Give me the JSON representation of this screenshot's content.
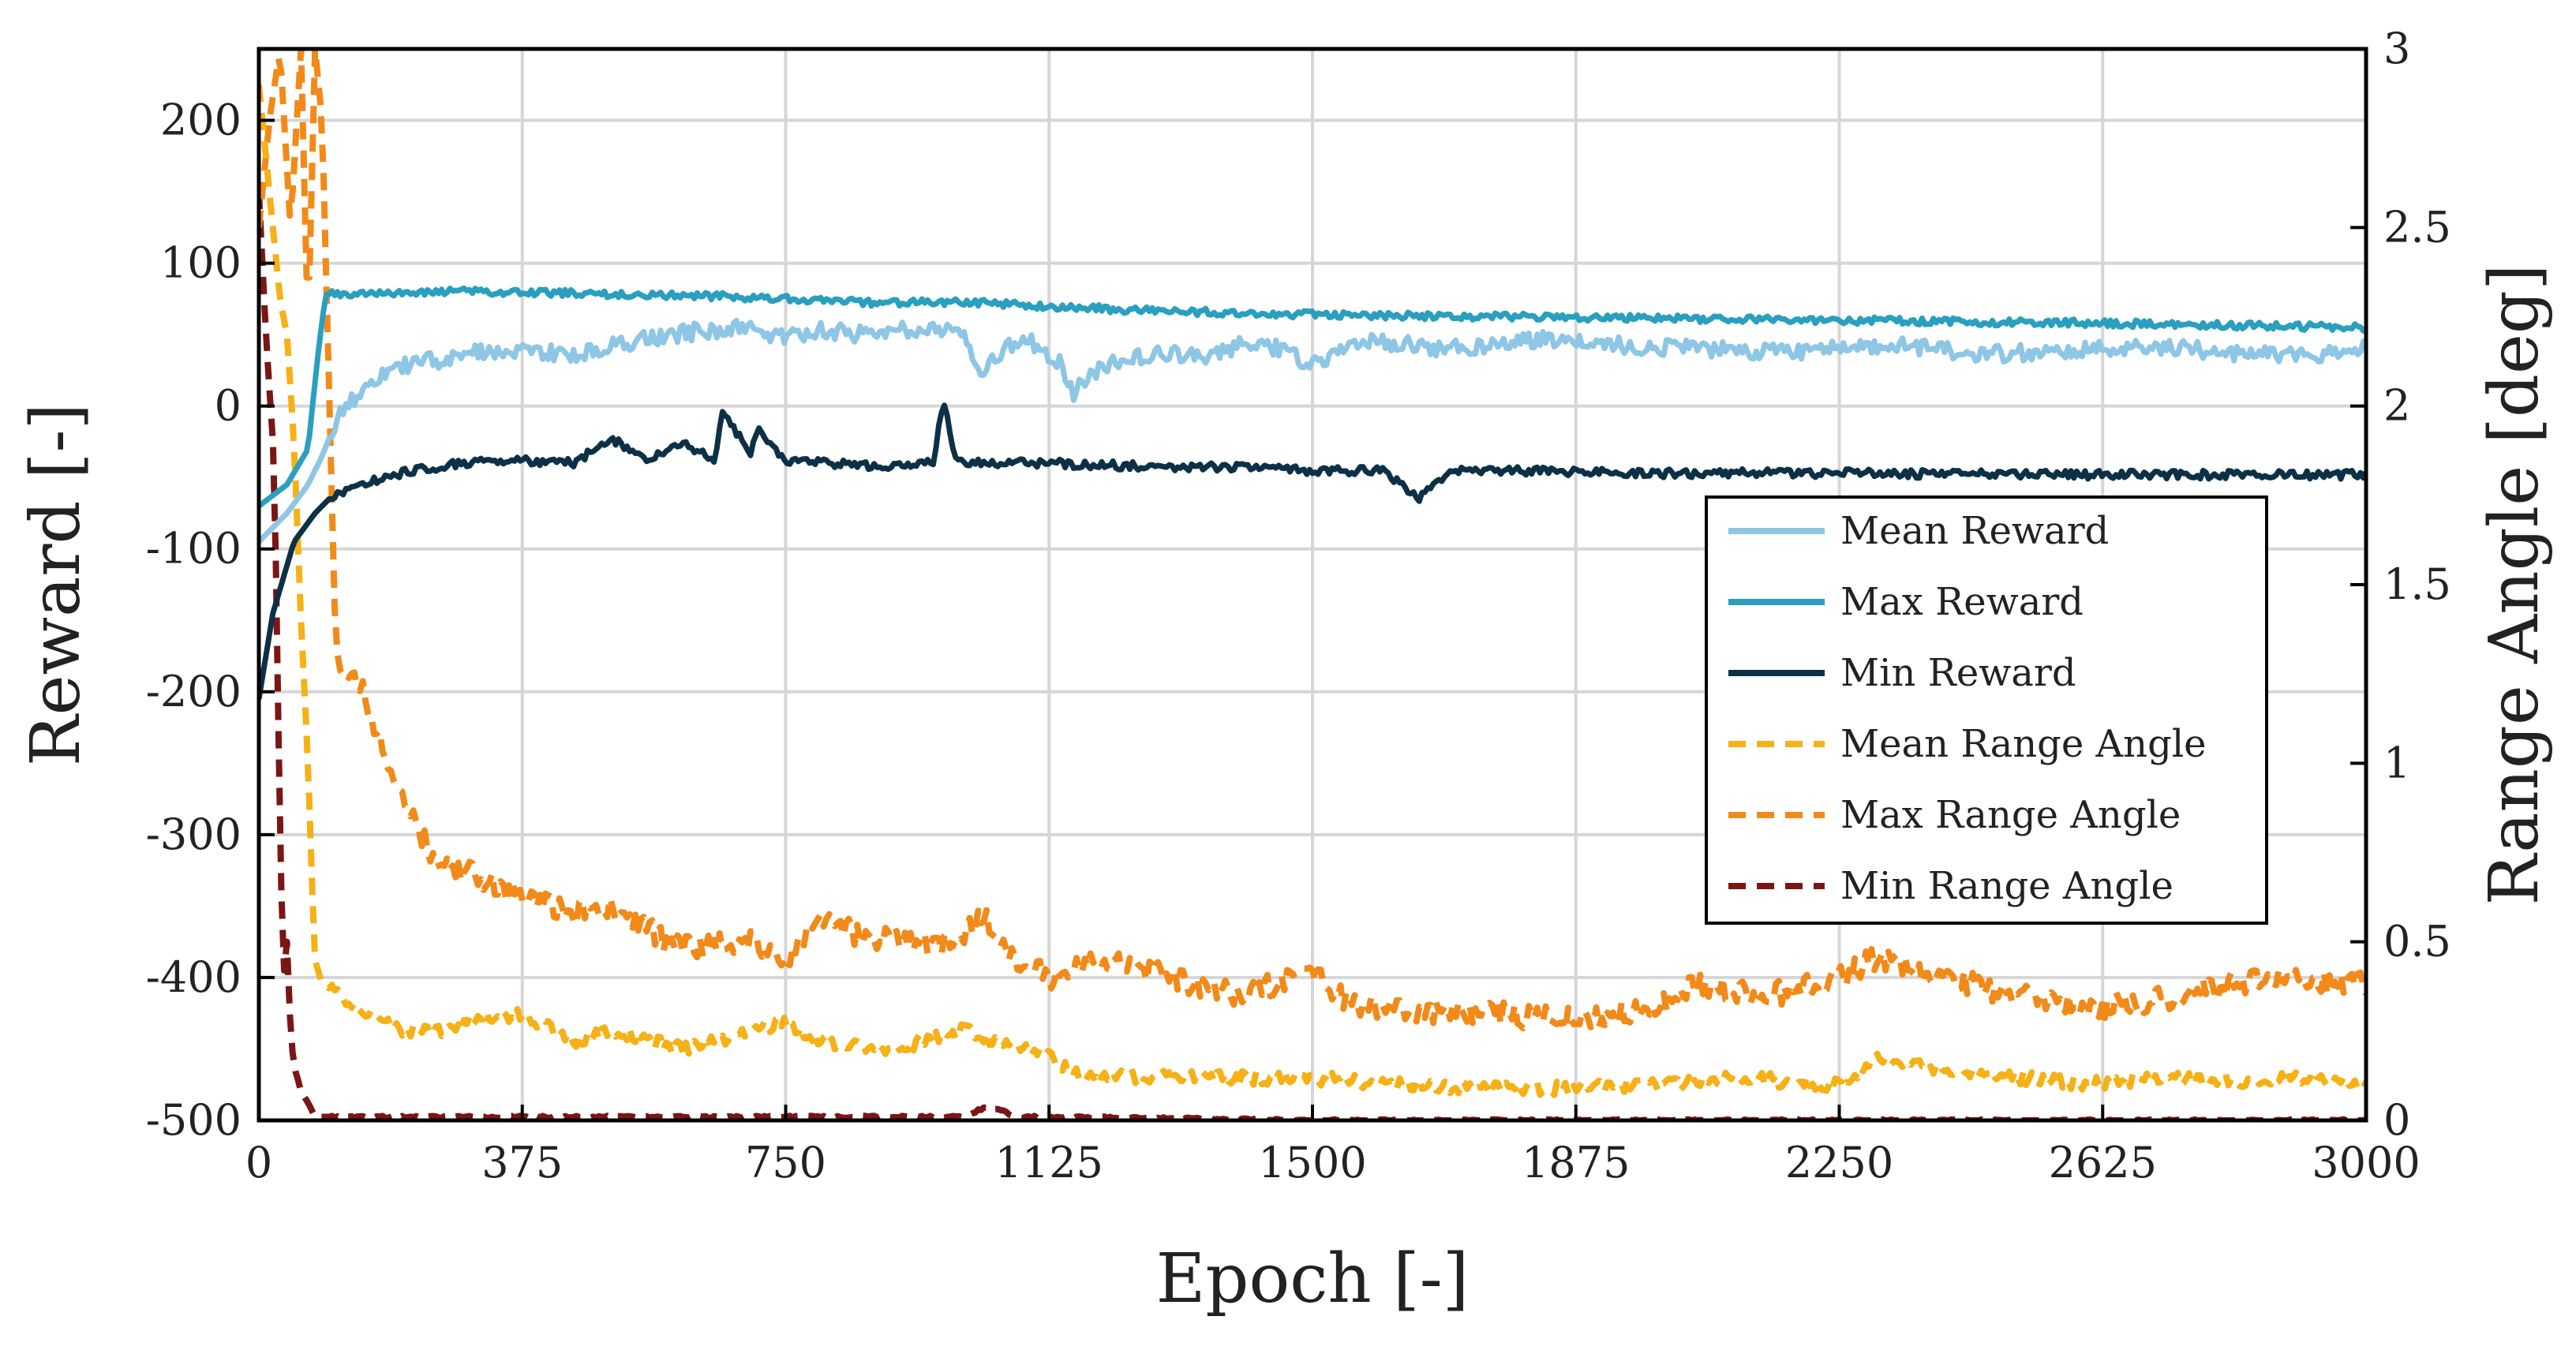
{
  "chart_data": {
    "type": "line",
    "title": "",
    "xlabel": "Epoch [-]",
    "ylabel": "Reward [-]",
    "y2label": "Range Angle [deg]",
    "xlim": [
      0,
      3000
    ],
    "ylim": [
      -500,
      250
    ],
    "y2lim": [
      0,
      3
    ],
    "x_ticks": [
      0,
      375,
      750,
      1125,
      1500,
      1875,
      2250,
      2625,
      3000
    ],
    "y_ticks": [
      -500,
      -400,
      -300,
      -200,
      -100,
      0,
      100,
      200
    ],
    "y2_ticks": [
      0,
      0.5,
      1,
      1.5,
      2,
      2.5,
      3
    ],
    "y2_tick_labels": [
      "0",
      "0.5",
      "1",
      "1.5",
      "2",
      "2.5",
      "3"
    ],
    "grid": true,
    "legend_position": "center-right",
    "series": [
      {
        "name": "Mean Reward",
        "axis": "left",
        "style": "solid",
        "color": "#8ec6e6",
        "x": [
          0,
          40,
          70,
          90,
          110,
          150,
          200,
          250,
          300,
          375,
          450,
          500,
          560,
          620,
          680,
          750,
          800,
          870,
          940,
          1000,
          1030,
          1060,
          1100,
          1140,
          1160,
          1200,
          1250,
          1300,
          1350,
          1400,
          1450,
          1500,
          1550,
          1600,
          1700,
          1800,
          1875,
          1950,
          2050,
          2150,
          2250,
          2350,
          2450,
          2550,
          2625,
          2700,
          2800,
          2900,
          3000
        ],
        "y": [
          -95,
          -75,
          -55,
          -35,
          -10,
          15,
          28,
          32,
          37,
          40,
          35,
          42,
          48,
          52,
          55,
          48,
          53,
          50,
          55,
          52,
          25,
          40,
          45,
          30,
          10,
          28,
          35,
          38,
          32,
          45,
          40,
          28,
          42,
          45,
          40,
          45,
          48,
          42,
          40,
          38,
          40,
          42,
          36,
          38,
          40,
          42,
          38,
          35,
          40
        ]
      },
      {
        "name": "Max Reward",
        "axis": "left",
        "style": "solid",
        "color": "#2a9fbf",
        "x": [
          0,
          40,
          70,
          85,
          95,
          150,
          250,
          375,
          500,
          650,
          750,
          900,
          1000,
          1125,
          1250,
          1500,
          1875,
          2250,
          2625,
          3000
        ],
        "y": [
          -70,
          -55,
          -30,
          40,
          78,
          79,
          80,
          80,
          78,
          77,
          75,
          72,
          73,
          70,
          67,
          64,
          62,
          60,
          58,
          55
        ]
      },
      {
        "name": "Min Reward",
        "axis": "left",
        "style": "solid",
        "color": "#0c3147",
        "x": [
          0,
          20,
          50,
          80,
          100,
          150,
          200,
          260,
          300,
          375,
          450,
          500,
          550,
          600,
          650,
          660,
          700,
          710,
          750,
          800,
          900,
          960,
          975,
          990,
          1050,
          1125,
          1250,
          1400,
          1500,
          1600,
          1650,
          1700,
          1875,
          2000,
          2250,
          2500,
          2625,
          2800,
          3000
        ],
        "y": [
          -205,
          -145,
          -95,
          -75,
          -65,
          -55,
          -47,
          -42,
          -40,
          -38,
          -40,
          -22,
          -38,
          -25,
          -38,
          -5,
          -32,
          -15,
          -38,
          -40,
          -42,
          -38,
          5,
          -38,
          -40,
          -40,
          -42,
          -43,
          -45,
          -45,
          -65,
          -45,
          -46,
          -47,
          -47,
          -48,
          -48,
          -48,
          -48
        ]
      },
      {
        "name": "Mean Range Angle",
        "axis": "right",
        "style": "dashed",
        "color": "#f5b116",
        "x": [
          0,
          10,
          20,
          30,
          40,
          50,
          60,
          70,
          75,
          80,
          90,
          110,
          150,
          200,
          260,
          300,
          375,
          450,
          500,
          600,
          700,
          750,
          800,
          900,
          1000,
          1060,
          1125,
          1175,
          1250,
          1350,
          1500,
          1600,
          1750,
          1875,
          2000,
          2100,
          2250,
          2300,
          2400,
          2500,
          2600,
          2700,
          2800,
          2900,
          3000
        ],
        "y": [
          2.9,
          2.7,
          2.5,
          2.3,
          2.2,
          1.9,
          1.4,
          1.0,
          0.7,
          0.45,
          0.38,
          0.36,
          0.3,
          0.25,
          0.25,
          0.28,
          0.3,
          0.22,
          0.25,
          0.2,
          0.25,
          0.28,
          0.22,
          0.2,
          0.25,
          0.22,
          0.18,
          0.12,
          0.12,
          0.12,
          0.12,
          0.1,
          0.09,
          0.09,
          0.1,
          0.12,
          0.1,
          0.17,
          0.14,
          0.12,
          0.1,
          0.12,
          0.11,
          0.12,
          0.1
        ]
      },
      {
        "name": "Max Range Angle",
        "axis": "right",
        "style": "dashed",
        "color": "#f28a1a",
        "x": [
          0,
          15,
          30,
          45,
          60,
          70,
          80,
          90,
          110,
          150,
          200,
          260,
          300,
          375,
          450,
          500,
          600,
          700,
          750,
          800,
          900,
          1000,
          1030,
          1080,
          1125,
          1200,
          1300,
          1400,
          1500,
          1550,
          1650,
          1750,
          1875,
          1950,
          2050,
          2150,
          2250,
          2300,
          2400,
          2500,
          2625,
          2750,
          2850,
          3000
        ],
        "y": [
          2.5,
          2.8,
          3.0,
          2.5,
          3.0,
          2.2,
          3.0,
          2.8,
          1.3,
          1.2,
          0.9,
          0.7,
          0.7,
          0.62,
          0.58,
          0.6,
          0.48,
          0.5,
          0.45,
          0.55,
          0.5,
          0.5,
          0.58,
          0.45,
          0.4,
          0.45,
          0.4,
          0.35,
          0.42,
          0.33,
          0.3,
          0.3,
          0.28,
          0.3,
          0.38,
          0.35,
          0.4,
          0.45,
          0.4,
          0.35,
          0.32,
          0.35,
          0.4,
          0.38
        ]
      },
      {
        "name": "Min Range Angle",
        "axis": "right",
        "style": "dashed",
        "color": "#7a1616",
        "x": [
          0,
          10,
          20,
          25,
          30,
          35,
          40,
          45,
          50,
          55,
          60,
          70,
          80,
          100,
          200,
          300,
          375,
          500,
          750,
          1000,
          1040,
          1080,
          1125,
          1500,
          1875,
          2250,
          2625,
          3000
        ],
        "y": [
          2.6,
          2.2,
          1.9,
          1.5,
          0.8,
          0.4,
          0.5,
          0.25,
          0.15,
          0.12,
          0.08,
          0.05,
          0.01,
          0.01,
          0.01,
          0.01,
          0.01,
          0.01,
          0.01,
          0.01,
          0.04,
          0.01,
          0.01,
          0.0,
          0.0,
          0.0,
          0.0,
          0.0
        ]
      }
    ]
  }
}
